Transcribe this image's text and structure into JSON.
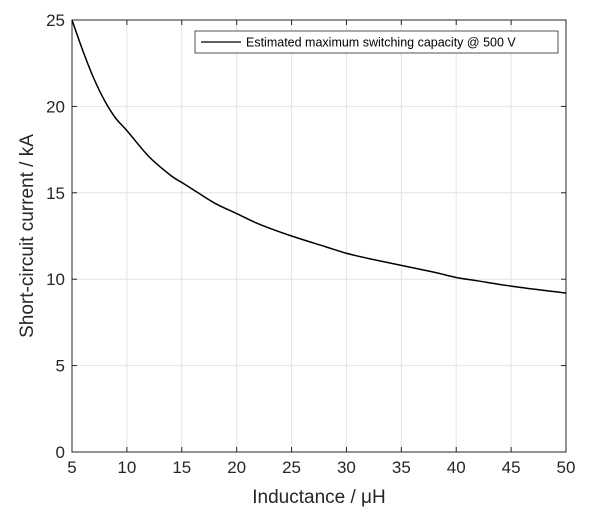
{
  "chart_data": {
    "type": "line",
    "title": "",
    "xlabel": "Inductance / μH",
    "ylabel": "Short-circuit current / kA",
    "xlim": [
      5,
      50
    ],
    "ylim": [
      0,
      25
    ],
    "xticks": [
      5,
      10,
      15,
      20,
      25,
      30,
      35,
      40,
      45,
      50
    ],
    "yticks": [
      0,
      5,
      10,
      15,
      20,
      25
    ],
    "xtick_labels": [
      "5",
      "10",
      "15",
      "20",
      "25",
      "30",
      "35",
      "40",
      "45",
      "50"
    ],
    "ytick_labels": [
      "0",
      "5",
      "10",
      "15",
      "20",
      "25"
    ],
    "grid": true,
    "legend_position": "top-right",
    "series": [
      {
        "name": "Estimated maximum switching capacity @ 500 V",
        "color": "#000000",
        "x": [
          5,
          6,
          7,
          8,
          9,
          10,
          12,
          14,
          15,
          16,
          18,
          20,
          22,
          25,
          28,
          30,
          32,
          35,
          38,
          40,
          42,
          45,
          48,
          50
        ],
        "y": [
          25.0,
          23.2,
          21.6,
          20.3,
          19.3,
          18.6,
          17.1,
          16.0,
          15.6,
          15.2,
          14.4,
          13.8,
          13.2,
          12.5,
          11.9,
          11.5,
          11.2,
          10.8,
          10.4,
          10.1,
          9.9,
          9.6,
          9.35,
          9.2
        ]
      }
    ]
  }
}
